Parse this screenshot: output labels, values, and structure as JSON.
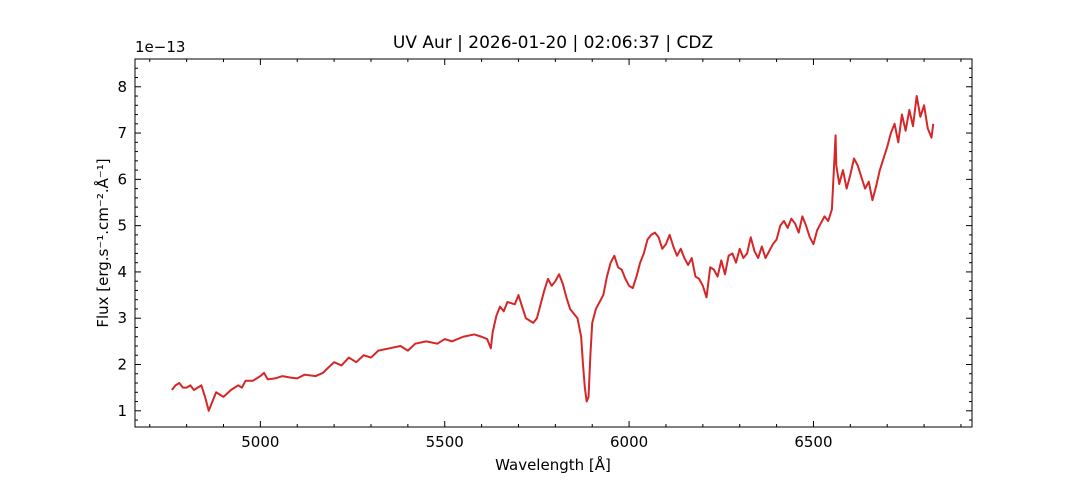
{
  "chart_data": {
    "type": "line",
    "title": "UV Aur | 2026-01-20 | 02:06:37 | CDZ",
    "xlabel": "Wavelength [Å]",
    "ylabel": "Flux [erg.s⁻¹.cm⁻².Å⁻¹]",
    "y_offset_label": "1e−13",
    "y_scale_factor": 1e-13,
    "xlim": [
      4660,
      6930
    ],
    "ylim": [
      0.65,
      8.6
    ],
    "xticks": [
      5000,
      5500,
      6000,
      6500
    ],
    "xtick_labels": [
      "5000",
      "5500",
      "6000",
      "6500"
    ],
    "yticks": [
      1,
      2,
      3,
      4,
      5,
      6,
      7,
      8
    ],
    "ytick_labels": [
      "1",
      "2",
      "3",
      "4",
      "5",
      "6",
      "7",
      "8"
    ],
    "grid": false,
    "legend": "none",
    "series": [
      {
        "color": "#d62728",
        "x": [
          4760,
          4770,
          4780,
          4790,
          4800,
          4810,
          4820,
          4830,
          4840,
          4850,
          4855,
          4860,
          4870,
          4880,
          4890,
          4900,
          4920,
          4940,
          4950,
          4960,
          4980,
          5000,
          5010,
          5020,
          5040,
          5060,
          5080,
          5100,
          5120,
          5150,
          5170,
          5180,
          5200,
          5220,
          5240,
          5260,
          5280,
          5300,
          5320,
          5350,
          5380,
          5400,
          5420,
          5450,
          5480,
          5500,
          5520,
          5550,
          5580,
          5600,
          5615,
          5625,
          5630,
          5640,
          5650,
          5660,
          5670,
          5690,
          5700,
          5710,
          5720,
          5730,
          5740,
          5750,
          5760,
          5770,
          5780,
          5790,
          5800,
          5810,
          5820,
          5830,
          5840,
          5850,
          5860,
          5870,
          5875,
          5880,
          5885,
          5890,
          5895,
          5900,
          5910,
          5920,
          5930,
          5940,
          5950,
          5960,
          5970,
          5980,
          5990,
          6000,
          6010,
          6020,
          6030,
          6040,
          6050,
          6060,
          6070,
          6080,
          6090,
          6100,
          6110,
          6120,
          6130,
          6140,
          6150,
          6160,
          6170,
          6180,
          6190,
          6200,
          6210,
          6220,
          6230,
          6240,
          6250,
          6260,
          6270,
          6280,
          6290,
          6300,
          6310,
          6320,
          6330,
          6340,
          6350,
          6360,
          6370,
          6380,
          6390,
          6400,
          6410,
          6420,
          6430,
          6440,
          6450,
          6460,
          6470,
          6480,
          6490,
          6500,
          6510,
          6520,
          6530,
          6540,
          6550,
          6560,
          6562,
          6570,
          6580,
          6590,
          6600,
          6610,
          6620,
          6630,
          6640,
          6650,
          6660,
          6670,
          6680,
          6690,
          6700,
          6710,
          6720,
          6730,
          6740,
          6750,
          6760,
          6770,
          6780,
          6790,
          6800,
          6810,
          6820,
          6825
        ],
        "y": [
          1.45,
          1.55,
          1.6,
          1.5,
          1.5,
          1.55,
          1.45,
          1.5,
          1.55,
          1.3,
          1.15,
          1.0,
          1.2,
          1.4,
          1.35,
          1.3,
          1.45,
          1.55,
          1.5,
          1.65,
          1.65,
          1.75,
          1.82,
          1.68,
          1.7,
          1.75,
          1.72,
          1.7,
          1.78,
          1.75,
          1.82,
          1.9,
          2.05,
          1.98,
          2.15,
          2.05,
          2.2,
          2.15,
          2.3,
          2.35,
          2.4,
          2.3,
          2.45,
          2.5,
          2.45,
          2.55,
          2.5,
          2.6,
          2.65,
          2.6,
          2.55,
          2.35,
          2.7,
          3.05,
          3.25,
          3.15,
          3.35,
          3.3,
          3.5,
          3.25,
          3.0,
          2.95,
          2.9,
          3.0,
          3.3,
          3.6,
          3.85,
          3.7,
          3.8,
          3.95,
          3.75,
          3.45,
          3.2,
          3.1,
          3.0,
          2.6,
          2.0,
          1.5,
          1.2,
          1.3,
          2.2,
          2.9,
          3.2,
          3.35,
          3.5,
          3.9,
          4.2,
          4.35,
          4.1,
          4.05,
          3.85,
          3.7,
          3.65,
          3.9,
          4.2,
          4.4,
          4.7,
          4.8,
          4.85,
          4.75,
          4.5,
          4.6,
          4.8,
          4.55,
          4.35,
          4.5,
          4.3,
          4.15,
          4.3,
          3.9,
          3.85,
          3.7,
          3.45,
          4.1,
          4.05,
          3.9,
          4.25,
          3.95,
          4.35,
          4.4,
          4.2,
          4.5,
          4.3,
          4.4,
          4.75,
          4.45,
          4.3,
          4.55,
          4.3,
          4.45,
          4.6,
          4.7,
          5.0,
          5.1,
          4.95,
          5.15,
          5.05,
          4.85,
          5.2,
          5.0,
          4.75,
          4.6,
          4.9,
          5.05,
          5.2,
          5.1,
          5.35,
          6.95,
          6.3,
          5.9,
          6.2,
          5.8,
          6.1,
          6.45,
          6.3,
          6.05,
          5.8,
          5.95,
          5.55,
          5.85,
          6.2,
          6.45,
          6.7,
          7.0,
          7.2,
          6.8,
          7.4,
          7.05,
          7.5,
          7.15,
          7.8,
          7.35,
          7.6,
          7.1,
          6.9,
          7.2
        ]
      }
    ]
  }
}
